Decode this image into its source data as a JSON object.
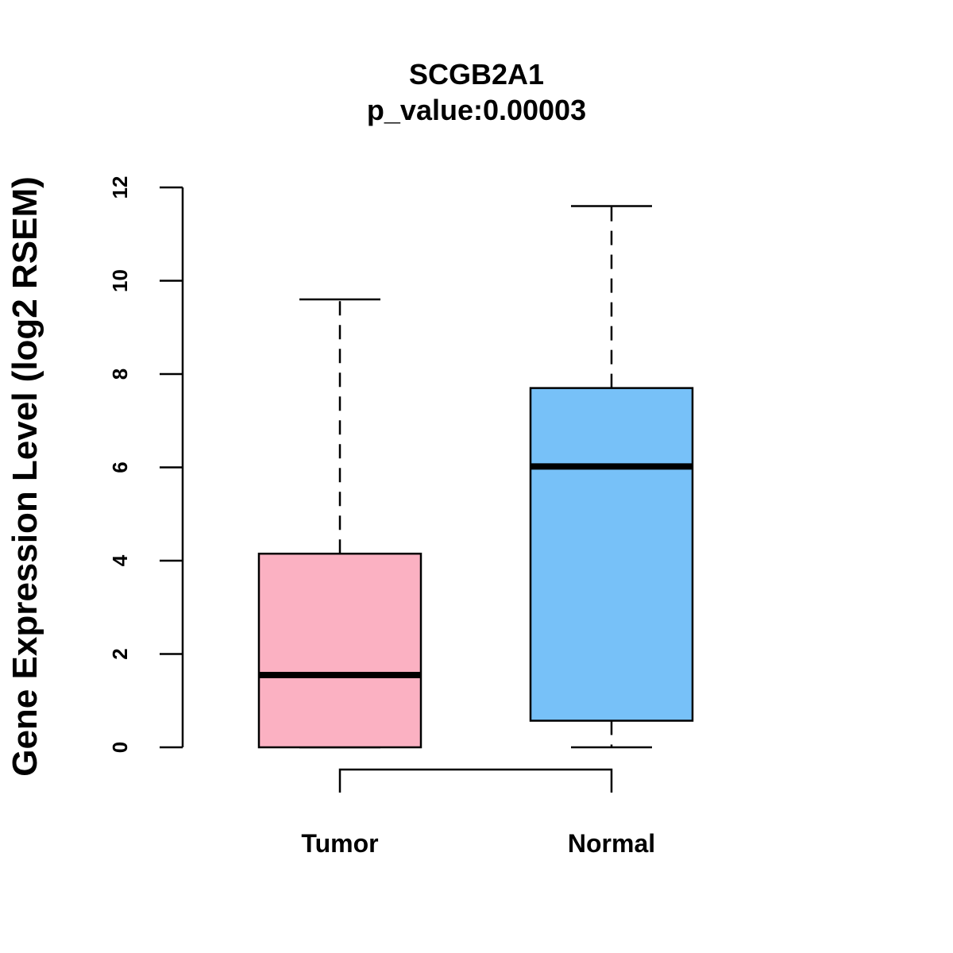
{
  "chart_data": {
    "type": "box",
    "title": "SCGB2A1",
    "subtitle": "p_value:0.00003",
    "ylabel": "Gene Expression Level (log2 RSEM)",
    "xlabel": "",
    "ylim": [
      0,
      12
    ],
    "yticks": [
      0,
      2,
      4,
      6,
      8,
      10,
      12
    ],
    "categories": [
      "Tumor",
      "Normal"
    ],
    "boxes": [
      {
        "category": "Tumor",
        "min": 0,
        "q1": 0,
        "median": 1.55,
        "q3": 4.15,
        "max": 9.6,
        "color": "#FBB1C2"
      },
      {
        "category": "Normal",
        "min": 0,
        "q1": 0.57,
        "median": 6.02,
        "q3": 7.7,
        "max": 11.6,
        "color": "#77C1F8"
      }
    ],
    "comparison_bracket": [
      "Tumor",
      "Normal"
    ],
    "grid": false
  }
}
